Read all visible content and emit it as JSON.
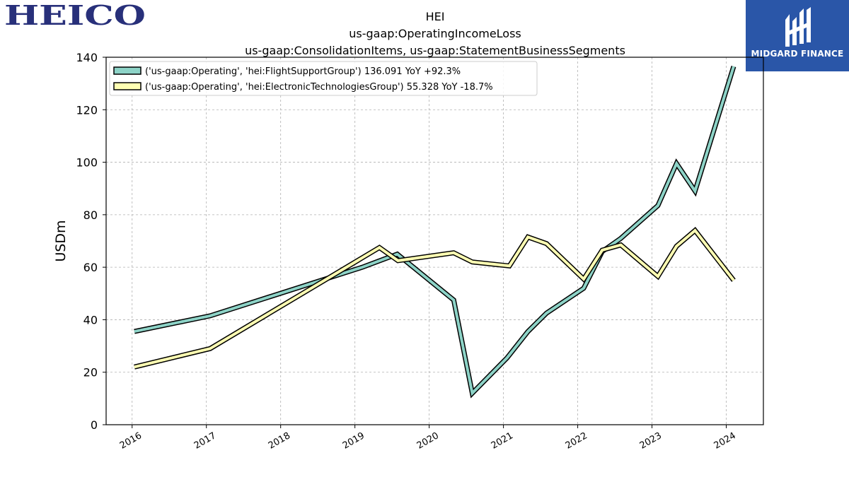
{
  "logos": {
    "left": {
      "text": "HEICO",
      "color": "#28307a"
    },
    "right": {
      "text": "MIDGARD FINANCE",
      "bg": "#2a56a8"
    }
  },
  "chart_data": {
    "type": "line",
    "title": "HEI",
    "subtitle_1": "us-gaap:OperatingIncomeLoss",
    "subtitle_2": "us-gaap:ConsolidationItems, us-gaap:StatementBusinessSegments",
    "xlabel": "",
    "ylabel": "USDm",
    "ylim": [
      0,
      140
    ],
    "xlim": [
      2015.65,
      2024.5
    ],
    "yticks": [
      0,
      20,
      40,
      60,
      80,
      100,
      120,
      140
    ],
    "xticks": [
      "2016",
      "2017",
      "2018",
      "2019",
      "2020",
      "2021",
      "2022",
      "2023",
      "2024"
    ],
    "grid": true,
    "legend_position": "top-left",
    "series": [
      {
        "name": "('us-gaap:Operating', 'hei:FlightSupportGroup') 136.091 YoY +92.3%",
        "color": "#8dd3c7",
        "x": [
          2016.03,
          2017.05,
          2019.1,
          2019.57,
          2020.33,
          2020.58,
          2021.05,
          2021.33,
          2021.58,
          2022.08,
          2022.33,
          2022.58,
          2023.08,
          2023.33,
          2023.58,
          2024.1
        ],
        "y": [
          35.5,
          41.5,
          60,
          65,
          47.5,
          12,
          25.5,
          35.5,
          42.5,
          52,
          66,
          71,
          83.5,
          99.5,
          89,
          136.5
        ]
      },
      {
        "name": "('us-gaap:Operating', 'hei:ElectronicTechnologiesGroup') 55.328 YoY -18.7%",
        "color": "#ffffb3",
        "x": [
          2016.03,
          2017.05,
          2019.33,
          2019.58,
          2020.33,
          2020.58,
          2021.08,
          2021.33,
          2021.58,
          2022.08,
          2022.33,
          2022.58,
          2023.08,
          2023.33,
          2023.58,
          2024.1
        ],
        "y": [
          22,
          29,
          67.5,
          62.5,
          65.5,
          62,
          60.5,
          71.5,
          69,
          55.5,
          66.5,
          68.5,
          56.5,
          68,
          74,
          55
        ]
      }
    ]
  }
}
